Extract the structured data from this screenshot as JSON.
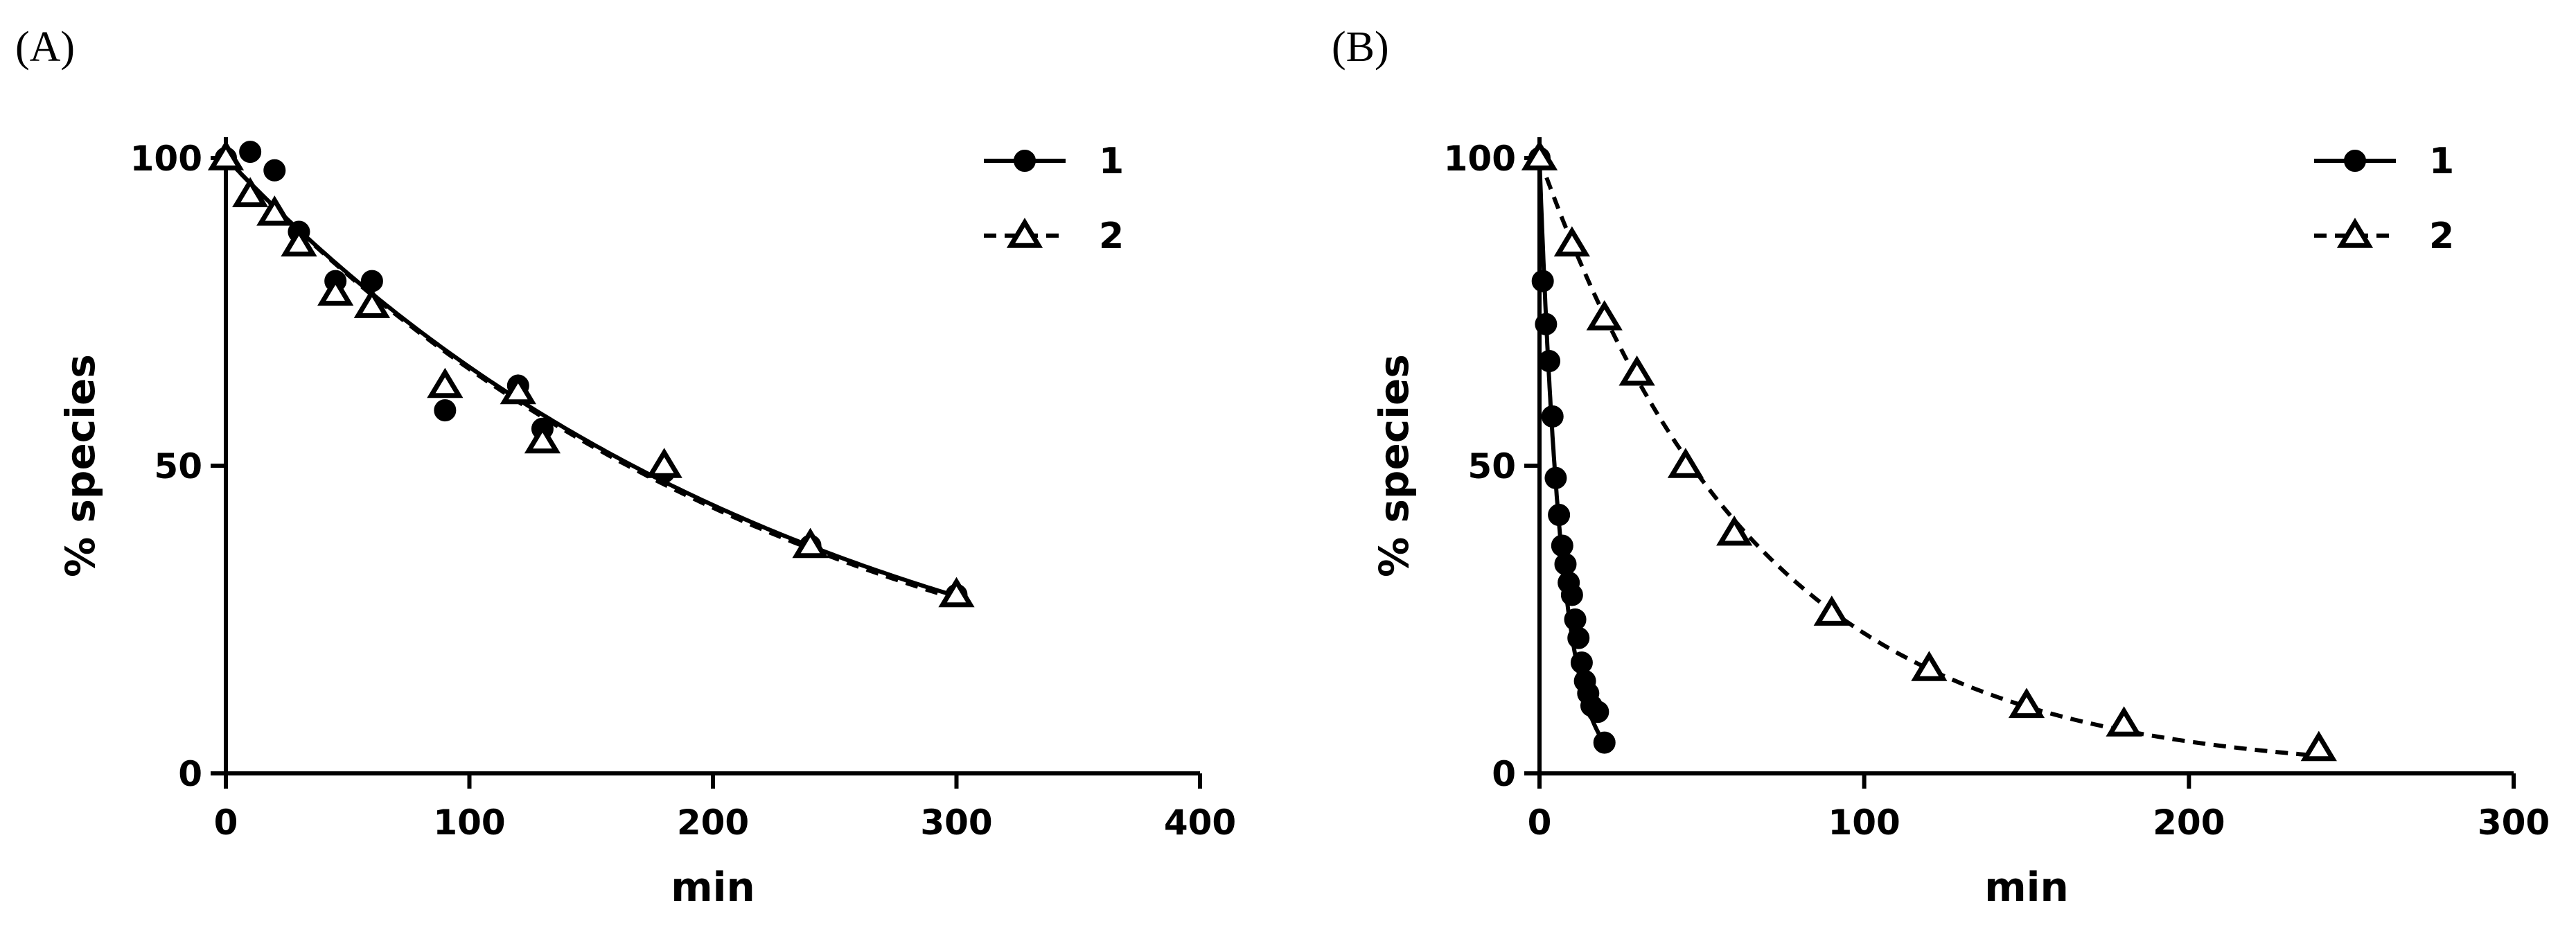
{
  "chart_data": [
    {
      "panel_label": "(A)",
      "type": "scatter",
      "xlabel": "min",
      "ylabel": "% species",
      "xlim": [
        0,
        400
      ],
      "ylim": [
        0,
        100
      ],
      "x_ticks": [
        0,
        100,
        200,
        300,
        400
      ],
      "y_ticks": [
        0,
        50,
        100
      ],
      "grid": false,
      "legend_position": "top-right",
      "series": [
        {
          "name": "1",
          "marker": "filled-circle",
          "line": "solid",
          "points": [
            [
              0,
              100
            ],
            [
              10,
              101
            ],
            [
              20,
              98
            ],
            [
              30,
              88
            ],
            [
              45,
              80
            ],
            [
              60,
              80
            ],
            [
              90,
              59
            ],
            [
              120,
              63
            ],
            [
              130,
              56
            ],
            [
              180,
              49
            ],
            [
              240,
              37
            ],
            [
              300,
              29
            ]
          ],
          "fit": {
            "y0": 100,
            "k": 0.00415
          }
        },
        {
          "name": "2",
          "marker": "open-triangle",
          "line": "dashed",
          "points": [
            [
              0,
              100
            ],
            [
              10,
              94
            ],
            [
              20,
              91
            ],
            [
              30,
              86
            ],
            [
              45,
              78
            ],
            [
              60,
              76
            ],
            [
              90,
              63
            ],
            [
              120,
              62
            ],
            [
              130,
              54
            ],
            [
              180,
              50
            ],
            [
              240,
              37
            ],
            [
              300,
              29
            ]
          ],
          "fit": {
            "y0": 100,
            "k": 0.0042
          }
        }
      ]
    },
    {
      "panel_label": "(B)",
      "type": "scatter",
      "xlabel": "min",
      "ylabel": "% species",
      "xlim": [
        0,
        300
      ],
      "ylim": [
        0,
        100
      ],
      "x_ticks": [
        0,
        100,
        200,
        300
      ],
      "y_ticks": [
        0,
        50,
        100
      ],
      "grid": false,
      "legend_position": "top-right",
      "series": [
        {
          "name": "1",
          "marker": "filled-circle",
          "line": "solid",
          "points": [
            [
              0,
              100
            ],
            [
              1,
              80
            ],
            [
              2,
              73
            ],
            [
              3,
              67
            ],
            [
              4,
              58
            ],
            [
              5,
              48
            ],
            [
              6,
              42
            ],
            [
              7,
              37
            ],
            [
              8,
              34
            ],
            [
              9,
              31
            ],
            [
              10,
              29
            ],
            [
              11,
              25
            ],
            [
              12,
              22
            ],
            [
              13,
              18
            ],
            [
              14,
              15
            ],
            [
              15,
              13
            ],
            [
              16,
              11
            ],
            [
              18,
              10
            ],
            [
              20,
              5
            ]
          ],
          "fit": {
            "y0": 100,
            "k": 0.15
          }
        },
        {
          "name": "2",
          "marker": "open-triangle",
          "line": "dashed",
          "points": [
            [
              0,
              100
            ],
            [
              10,
              86
            ],
            [
              20,
              74
            ],
            [
              30,
              65
            ],
            [
              45,
              50
            ],
            [
              60,
              39
            ],
            [
              90,
              26
            ],
            [
              120,
              17
            ],
            [
              150,
              11
            ],
            [
              180,
              8
            ],
            [
              240,
              4
            ]
          ],
          "fit": {
            "y0": 100,
            "k": 0.0148
          }
        }
      ]
    }
  ]
}
